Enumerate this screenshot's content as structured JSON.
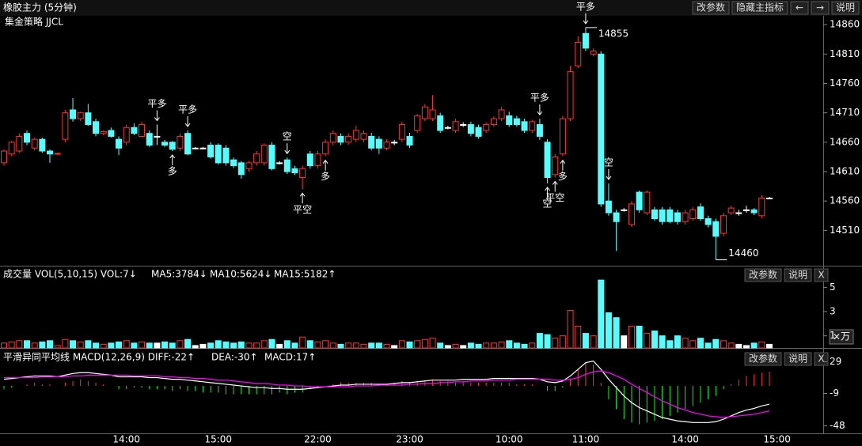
{
  "toolbar": {
    "title": "橡胶主力 (5分钟)",
    "buttons": [
      "改参数",
      "隐藏主指标",
      "←",
      "→",
      "说明"
    ]
  },
  "chart_data": [
    {
      "type": "candlestick",
      "subtitle": "集金策略 JJCL",
      "up_color": "#ff3232",
      "down_color": "#54ffff",
      "doji_color": "#ffffff",
      "ylim": [
        14450,
        14875
      ],
      "yticks": [
        14860,
        14810,
        14760,
        14710,
        14660,
        14610,
        14560,
        14510
      ],
      "categories": [
        null,
        null,
        null,
        null,
        null,
        null,
        null,
        null,
        null,
        null,
        null,
        null,
        null,
        null,
        null,
        null,
        "14:00",
        null,
        null,
        null,
        null,
        null,
        null,
        null,
        null,
        null,
        null,
        null,
        "15:00",
        null,
        null,
        null,
        null,
        null,
        null,
        null,
        null,
        null,
        null,
        null,
        null,
        "22:00",
        null,
        null,
        null,
        null,
        null,
        null,
        null,
        null,
        null,
        null,
        null,
        "23:00",
        null,
        null,
        null,
        null,
        null,
        null,
        null,
        null,
        null,
        null,
        null,
        null,
        "10:00",
        null,
        null,
        null,
        null,
        null,
        null,
        null,
        null,
        null,
        "11:00",
        null,
        null,
        null,
        null,
        null,
        null,
        null,
        null,
        null,
        null,
        null,
        null,
        "14:00",
        null,
        null,
        null,
        null,
        null,
        null,
        null,
        null,
        null,
        null,
        null,
        "15:00"
      ],
      "ohlc": [
        [
          14625,
          14648,
          14620,
          14645
        ],
        [
          14640,
          14662,
          14636,
          14660
        ],
        [
          14645,
          14675,
          14642,
          14670
        ],
        [
          14675,
          14680,
          14655,
          14660
        ],
        [
          14650,
          14668,
          14646,
          14665
        ],
        [
          14665,
          14668,
          14642,
          14645
        ],
        [
          14645,
          14648,
          14625,
          14640
        ],
        [
          14640,
          14642,
          14638,
          14641
        ],
        [
          14665,
          14715,
          14660,
          14710
        ],
        [
          14715,
          14735,
          14695,
          14700
        ],
        [
          14700,
          14712,
          14696,
          14710
        ],
        [
          14710,
          14725,
          14688,
          14690
        ],
        [
          14695,
          14700,
          14670,
          14675
        ],
        [
          14675,
          14680,
          14672,
          14678
        ],
        [
          14680,
          14685,
          14668,
          14670
        ],
        [
          14665,
          14670,
          14638,
          14650
        ],
        [
          14660,
          14690,
          14655,
          14685
        ],
        [
          14685,
          14692,
          14672,
          14675
        ],
        [
          14670,
          14695,
          14668,
          14690
        ],
        [
          14675,
          14680,
          14652,
          14655
        ],
        [
          14670,
          14690,
          14655,
          14670
        ],
        [
          14660,
          14664,
          14652,
          14655
        ],
        [
          14660,
          14662,
          14645,
          14648
        ],
        [
          14650,
          14675,
          14645,
          14670
        ],
        [
          14675,
          14680,
          14638,
          14640
        ],
        [
          14650,
          14652,
          14648,
          14650
        ],
        [
          14650,
          14652,
          14648,
          14650
        ],
        [
          14655,
          14660,
          14632,
          14635
        ],
        [
          14655,
          14658,
          14622,
          14625
        ],
        [
          14650,
          14655,
          14620,
          14625
        ],
        [
          14630,
          14634,
          14616,
          14620
        ],
        [
          14625,
          14628,
          14598,
          14605
        ],
        [
          14615,
          14628,
          14610,
          14625
        ],
        [
          14625,
          14645,
          14620,
          14640
        ],
        [
          14625,
          14658,
          14620,
          14655
        ],
        [
          14655,
          14660,
          14612,
          14615
        ],
        [
          14625,
          14628,
          14622,
          14625
        ],
        [
          14630,
          14634,
          14606,
          14610
        ],
        [
          14615,
          14620,
          14604,
          14608
        ],
        [
          14600,
          14620,
          14580,
          14615
        ],
        [
          14640,
          14645,
          14615,
          14620
        ],
        [
          14620,
          14645,
          14615,
          14640
        ],
        [
          14640,
          14665,
          14636,
          14660
        ],
        [
          14660,
          14680,
          14655,
          14675
        ],
        [
          14670,
          14675,
          14655,
          14660
        ],
        [
          14660,
          14675,
          14656,
          14670
        ],
        [
          14665,
          14688,
          14660,
          14680
        ],
        [
          14665,
          14680,
          14660,
          14675
        ],
        [
          14670,
          14676,
          14646,
          14650
        ],
        [
          14665,
          14670,
          14640,
          14650
        ],
        [
          14650,
          14665,
          14646,
          14660
        ],
        [
          14660,
          14664,
          14655,
          14660
        ],
        [
          14665,
          14695,
          14660,
          14690
        ],
        [
          14670,
          14676,
          14650,
          14655
        ],
        [
          14680,
          14708,
          14676,
          14705
        ],
        [
          14700,
          14725,
          14696,
          14720
        ],
        [
          14700,
          14740,
          14696,
          14715
        ],
        [
          14705,
          14710,
          14676,
          14680
        ],
        [
          14685,
          14688,
          14682,
          14685
        ],
        [
          14680,
          14700,
          14676,
          14695
        ],
        [
          14690,
          14694,
          14686,
          14690
        ],
        [
          14690,
          14695,
          14670,
          14675
        ],
        [
          14685,
          14690,
          14666,
          14670
        ],
        [
          14680,
          14694,
          14676,
          14690
        ],
        [
          14690,
          14704,
          14686,
          14700
        ],
        [
          14700,
          14720,
          14696,
          14715
        ],
        [
          14705,
          14712,
          14686,
          14690
        ],
        [
          14700,
          14705,
          14686,
          14690
        ],
        [
          14695,
          14700,
          14676,
          14680
        ],
        [
          14680,
          14698,
          14676,
          14695
        ],
        [
          14690,
          14700,
          14664,
          14670
        ],
        [
          14660,
          14665,
          14590,
          14600
        ],
        [
          14605,
          14640,
          14600,
          14635
        ],
        [
          14640,
          14705,
          14636,
          14700
        ],
        [
          14700,
          14790,
          14696,
          14780
        ],
        [
          14790,
          14840,
          14786,
          14830
        ],
        [
          14845,
          14855,
          14815,
          14820
        ],
        [
          14810,
          14820,
          14806,
          14815
        ],
        [
          14810,
          14815,
          14550,
          14555
        ],
        [
          14560,
          14590,
          14535,
          14540
        ],
        [
          14540,
          14545,
          14475,
          14525
        ],
        [
          14545,
          14548,
          14542,
          14545
        ],
        [
          14520,
          14560,
          14516,
          14555
        ],
        [
          14575,
          14578,
          14540,
          14545
        ],
        [
          14540,
          14578,
          14536,
          14575
        ],
        [
          14545,
          14550,
          14526,
          14530
        ],
        [
          14545,
          14550,
          14520,
          14525
        ],
        [
          14545,
          14550,
          14522,
          14525
        ],
        [
          14540,
          14545,
          14520,
          14525
        ],
        [
          14525,
          14545,
          14520,
          14540
        ],
        [
          14530,
          14550,
          14526,
          14545
        ],
        [
          14550,
          14556,
          14526,
          14530
        ],
        [
          14530,
          14535,
          14515,
          14520
        ],
        [
          14525,
          14530,
          14460,
          14500
        ],
        [
          14505,
          14540,
          14500,
          14535
        ],
        [
          14540,
          14552,
          14536,
          14548
        ],
        [
          14540,
          14545,
          14535,
          14540
        ],
        [
          14545,
          14552,
          14540,
          14545
        ],
        [
          14545,
          14548,
          14536,
          14540
        ],
        [
          14535,
          14570,
          14530,
          14565
        ],
        [
          14565,
          14567,
          14563,
          14565
        ],
        null
      ],
      "signals": [
        {
          "text": "平多",
          "index": 20,
          "side": "above",
          "color": "#33ff33"
        },
        {
          "text": "多",
          "index": 22,
          "side": "below",
          "color": "#ff3232"
        },
        {
          "text": "平多",
          "index": 24,
          "side": "above",
          "color": "#33ff33"
        },
        {
          "text": "空",
          "index": 37,
          "side": "above",
          "color": "#33ff33"
        },
        {
          "text": "平空",
          "index": 39,
          "side": "below",
          "color": "#ff3232"
        },
        {
          "text": "多",
          "index": 42,
          "side": "below",
          "color": "#ff3232"
        },
        {
          "text": "平多",
          "index": 70,
          "side": "above",
          "color": "#33ff33"
        },
        {
          "text": "空",
          "index": 71,
          "side": "below",
          "color": "#33ff33"
        },
        {
          "text": "平空",
          "index": 72,
          "side": "below",
          "color": "#ff3232"
        },
        {
          "text": "多",
          "index": 73,
          "side": "below",
          "color": "#ff3232"
        },
        {
          "text": "平多",
          "index": 76,
          "side": "above",
          "color": "#33ff33"
        },
        {
          "text": "空",
          "index": 79,
          "side": "above",
          "color": "#33ff33"
        }
      ],
      "price_labels": [
        {
          "value": 14855,
          "index": 76
        },
        {
          "value": 14460,
          "index": 93
        }
      ]
    },
    {
      "type": "bar",
      "legend": [
        {
          "text": "成交量 VOL(5,10,15) VOL:7↓",
          "color": "#ffffff"
        },
        {
          "text": "MA5:3784↓",
          "color": "#ff00ff"
        },
        {
          "text": "MA10:5624↓",
          "color": "#00ff00"
        },
        {
          "text": "MA15:5182↑",
          "color": "#3333ff"
        }
      ],
      "buttons": [
        "改参数",
        "说明",
        "X"
      ],
      "unit": "×万",
      "ylim": [
        0,
        6
      ],
      "yticks": [
        5,
        3,
        1
      ],
      "values": [
        0.4,
        0.5,
        0.6,
        0.6,
        0.4,
        0.5,
        0.6,
        0.2,
        0.7,
        0.6,
        0.5,
        0.6,
        0.4,
        0.3,
        0.4,
        0.5,
        0.6,
        0.4,
        0.5,
        0.4,
        0.4,
        0.5,
        0.4,
        0.6,
        0.7,
        0.2,
        0.3,
        0.4,
        0.6,
        0.5,
        0.4,
        0.5,
        0.4,
        0.4,
        0.6,
        0.7,
        0.3,
        0.6,
        0.4,
        0.9,
        0.6,
        0.5,
        0.6,
        0.4,
        0.3,
        0.4,
        0.4,
        0.3,
        0.4,
        0.4,
        0.3,
        0.2,
        0.6,
        0.5,
        0.6,
        0.7,
        0.8,
        0.4,
        0.2,
        0.3,
        0.2,
        0.4,
        0.3,
        0.4,
        0.4,
        0.5,
        0.6,
        0.4,
        0.3,
        0.4,
        1.2,
        1.1,
        0.8,
        1,
        3.1,
        1.8,
        1.2,
        1,
        5.6,
        2.9,
        2.5,
        1,
        1.8,
        1.8,
        1.2,
        1.4,
        1,
        0.6,
        1,
        0.8,
        0.6,
        0.8,
        0.4,
        0.7,
        0.6,
        0.4,
        0.3,
        0.2,
        0.4,
        0.5,
        0.3,
        null
      ]
    },
    {
      "type": "macd",
      "legend": [
        {
          "text": "平滑异同平均线 MACD(12,26,9) DIFF:-22↑",
          "color": "#ffffff"
        },
        {
          "text": "DEA:-30↑",
          "color": "#ff00ff"
        },
        {
          "text": "MACD:17↑",
          "color": "#00ff00"
        }
      ],
      "buttons": [
        "改参数",
        "说明",
        "X"
      ],
      "ylim": [
        -57,
        40
      ],
      "yticks": [
        29,
        -9,
        -48
      ],
      "hist_up_color": "#ff3232",
      "hist_down_color": "#00ff00",
      "series": [
        {
          "name": "DIF",
          "color": "#ffffff",
          "values": [
            8,
            9,
            10,
            11,
            12,
            12,
            12,
            11,
            13,
            15,
            16,
            16,
            15,
            14,
            13,
            11,
            11,
            11,
            11,
            10,
            10,
            9,
            8,
            8,
            7,
            6,
            5,
            4,
            3,
            2,
            1,
            0,
            -1,
            -2,
            -2,
            -3,
            -3,
            -4,
            -4,
            -4,
            -3,
            -2,
            -1,
            0,
            1,
            1,
            2,
            2,
            2,
            2,
            2,
            3,
            4,
            4,
            5,
            6,
            7,
            7,
            7,
            7,
            8,
            8,
            8,
            8,
            9,
            9,
            9,
            9,
            9,
            9,
            8,
            5,
            4,
            6,
            12,
            20,
            28,
            30,
            20,
            8,
            -2,
            -12,
            -20,
            -26,
            -30,
            -34,
            -38,
            -40,
            -42,
            -43,
            -44,
            -44,
            -44,
            -43,
            -40,
            -36,
            -32,
            -29,
            -27,
            -24,
            -22,
            null
          ]
        },
        {
          "name": "DEA",
          "color": "#ff00ff",
          "values": [
            10,
            10,
            10,
            10,
            10,
            11,
            11,
            11,
            11,
            12,
            12,
            13,
            13,
            13,
            13,
            13,
            13,
            12,
            12,
            12,
            12,
            11,
            11,
            10,
            10,
            9,
            9,
            8,
            7,
            7,
            6,
            5,
            4,
            3,
            3,
            2,
            1,
            1,
            0,
            0,
            -1,
            -1,
            -1,
            -1,
            -1,
            -1,
            0,
            0,
            0,
            1,
            1,
            1,
            1,
            2,
            2,
            3,
            3,
            4,
            4,
            5,
            5,
            6,
            6,
            6,
            7,
            7,
            7,
            8,
            8,
            8,
            8,
            8,
            7,
            7,
            8,
            10,
            14,
            17,
            18,
            16,
            12,
            8,
            2,
            -3,
            -8,
            -13,
            -18,
            -22,
            -26,
            -29,
            -32,
            -34,
            -36,
            -37,
            -38,
            -37,
            -36,
            -35,
            -34,
            -32,
            -30,
            null
          ]
        }
      ],
      "hist": [
        -4,
        -2,
        0,
        2,
        4,
        2,
        2,
        0,
        4,
        6,
        8,
        6,
        4,
        2,
        0,
        -4,
        -4,
        -2,
        -2,
        -4,
        -4,
        -4,
        -6,
        -4,
        -6,
        -6,
        -8,
        -8,
        -8,
        -10,
        -10,
        -10,
        -10,
        -10,
        -10,
        -10,
        -8,
        -10,
        -8,
        -8,
        -4,
        -2,
        0,
        2,
        4,
        4,
        4,
        4,
        4,
        2,
        2,
        4,
        6,
        4,
        6,
        6,
        8,
        6,
        6,
        4,
        6,
        4,
        4,
        4,
        4,
        4,
        4,
        2,
        2,
        2,
        0,
        -6,
        -6,
        -2,
        8,
        20,
        28,
        26,
        4,
        -16,
        -28,
        -40,
        -44,
        -46,
        -44,
        -42,
        -40,
        -36,
        -32,
        -28,
        -24,
        -20,
        -16,
        -12,
        -4,
        2,
        8,
        12,
        14,
        16,
        17,
        null
      ]
    }
  ]
}
